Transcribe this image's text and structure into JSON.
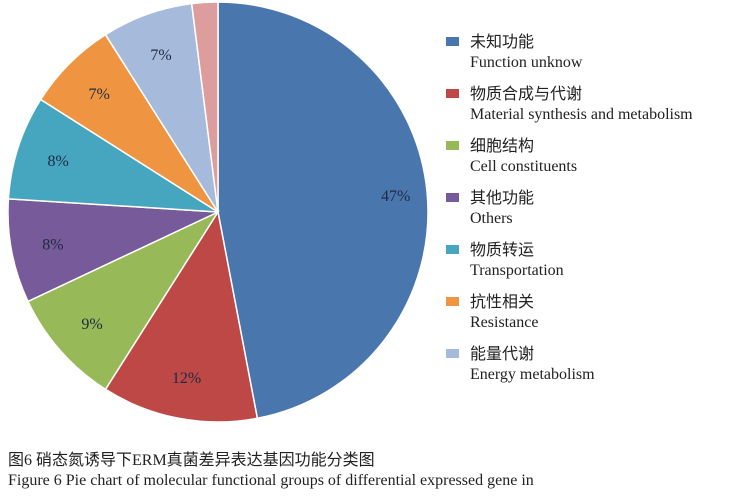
{
  "chart_data": {
    "type": "pie",
    "start": "top",
    "direction": "clockwise",
    "slices": [
      {
        "cn": "未知功能",
        "en": "Function unknow",
        "value": 47,
        "label": "47%",
        "color": "#4a76ae"
      },
      {
        "cn": "物质合成与代谢",
        "en": "Material synthesis and metabolism",
        "value": 12,
        "label": "12%",
        "color": "#bd4845"
      },
      {
        "cn": "细胞结构",
        "en": "Cell constituents",
        "value": 9,
        "label": "9%",
        "color": "#98b957"
      },
      {
        "cn": "其他功能",
        "en": "Others",
        "value": 8,
        "label": "8%",
        "color": "#775a99"
      },
      {
        "cn": "物质转运",
        "en": "Transportation",
        "value": 8,
        "label": "8%",
        "color": "#47a6bf"
      },
      {
        "cn": "抗性相关",
        "en": "Resistance",
        "value": 7,
        "label": "7%",
        "color": "#ef9440"
      },
      {
        "cn": "能量代谢",
        "en": "Energy metabolism",
        "value": 7,
        "label": "7%",
        "color": "#a6badb"
      },
      {
        "value": 2,
        "label": "",
        "color": "#dc9d9c"
      }
    ],
    "legend": "right"
  },
  "caption": {
    "cn": "图6 硝态氮诱导下ERM真菌差异表达基因功能分类图",
    "en": "Figure 6 Pie chart of molecular functional groups of differential expressed gene in"
  }
}
